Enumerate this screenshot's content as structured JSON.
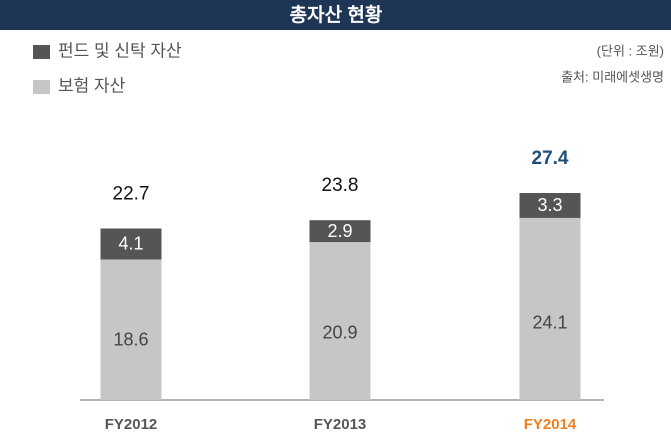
{
  "chart_data": {
    "type": "stacked_bar",
    "title": "총자산 현황",
    "unit": "(단위 : 조원)",
    "source": "출처: 미래에셋생명",
    "categories": [
      "FY2012",
      "FY2013",
      "FY2014"
    ],
    "category_colors": [
      "#555555",
      "#555555",
      "#f07f1e"
    ],
    "series": [
      {
        "name": "보험 자산",
        "color": "#c6c6c6",
        "label_color": "#444444",
        "values": [
          18.6,
          20.9,
          24.1
        ]
      },
      {
        "name": "펀드 및 신탁 자산",
        "color": "#555555",
        "label_color": "#ffffff",
        "values": [
          4.1,
          2.9,
          3.3
        ]
      }
    ],
    "totals": [
      22.7,
      23.8,
      27.4
    ],
    "total_colors": [
      "#111111",
      "#111111",
      "#1f4e79"
    ]
  }
}
